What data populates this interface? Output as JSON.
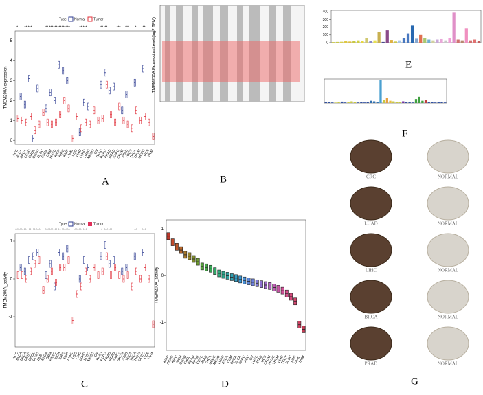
{
  "panels": [
    "A",
    "B",
    "C",
    "D",
    "E",
    "F",
    "G"
  ],
  "legend": {
    "title": "Type",
    "items": [
      "Normal",
      "Tumor"
    ]
  },
  "panel_b": {
    "y_label": "TMEM200A Expression Level (log2 TPM)"
  },
  "tissues": [
    [
      "CRC",
      "NORMAL"
    ],
    [
      "LUAD",
      "NORMAL"
    ],
    [
      "LIHC",
      "NORMAL"
    ],
    [
      "BRCA",
      "NORMAL"
    ],
    [
      "PRAD",
      "NORMAL"
    ]
  ],
  "chart_data": [
    {
      "type": "box",
      "y_label": "TMEM200A expression",
      "ylim": [
        -0.2,
        5.5
      ],
      "yticks": [
        0,
        1,
        2,
        3,
        4,
        5
      ],
      "categories": [
        "ACC",
        "BLCA",
        "BRCA",
        "CESC",
        "CHOL",
        "COAD",
        "DLBC",
        "ESCA",
        "GBM",
        "HNSC",
        "KICH",
        "KIRC",
        "KIRP",
        "LAML",
        "LGG",
        "LIHC",
        "LUAD",
        "LUSC",
        "MESO",
        "OV",
        "PAAD",
        "PCPG",
        "PRAD",
        "READ",
        "SARC",
        "SKCM",
        "STAD",
        "TGCT",
        "THCA",
        "THYM",
        "UCEC",
        "UCS",
        "UVM"
      ],
      "significance": [
        "*",
        null,
        "**",
        "***",
        null,
        null,
        null,
        "**",
        "***",
        "***",
        "***",
        "***",
        "***",
        null,
        null,
        "**",
        "***",
        null,
        null,
        null,
        "**",
        "**",
        null,
        null,
        "***",
        null,
        "***",
        null,
        "*",
        null,
        "**",
        null,
        null
      ],
      "series": [
        {
          "name": "Normal",
          "color": "#2b3a8f",
          "values": [
            null,
            2.2,
            1.8,
            3.1,
            0.1,
            2.6,
            null,
            1.6,
            2.4,
            2.0,
            3.8,
            3.5,
            3.0,
            null,
            null,
            0.4,
            1.9,
            1.7,
            null,
            null,
            2.8,
            3.4,
            2.5,
            2.7,
            null,
            1.5,
            2.3,
            null,
            2.9,
            null,
            3.6,
            null,
            null
          ]
        },
        {
          "name": "Tumor",
          "color": "#e0303a",
          "values": [
            1.1,
            1.0,
            0.9,
            1.2,
            0.5,
            0.8,
            1.4,
            0.9,
            0.8,
            0.9,
            1.3,
            2.0,
            1.6,
            0.1,
            1.2,
            0.6,
            0.9,
            0.8,
            1.5,
            1.0,
            1.1,
            2.8,
            1.3,
            0.9,
            1.7,
            1.0,
            0.8,
            0.6,
            1.5,
            1.0,
            1.2,
            0.9,
            0.2
          ]
        }
      ]
    },
    {
      "type": "box",
      "y_label": "TMEM200A_activity",
      "ylim": [
        -1.8,
        1.2
      ],
      "yticks": [
        -1,
        0,
        1
      ],
      "categories": [
        "ACC",
        "BLCA",
        "BRCA",
        "CESC",
        "CHOL",
        "COAD",
        "DLBC",
        "ESCA",
        "GBM",
        "HNSC",
        "KICH",
        "KIRC",
        "KIRP",
        "LAML",
        "LGG",
        "LIHC",
        "LUAD",
        "LUSC",
        "MESO",
        "OV",
        "PAAD",
        "PCPG",
        "PRAD",
        "READ",
        "SARC",
        "SKCM",
        "STAD",
        "TGCT",
        "THCA",
        "THYM",
        "UCEC",
        "UCS",
        "UVM"
      ],
      "significance": [
        "***",
        "***",
        "***",
        "**",
        "**",
        "***",
        null,
        "***",
        "***",
        "***",
        "**",
        "***",
        "***",
        null,
        "***",
        "***",
        "***",
        null,
        null,
        null,
        "*",
        "***",
        "***",
        null,
        null,
        null,
        null,
        null,
        "**",
        null,
        "***",
        null,
        null
      ],
      "series": [
        {
          "name": "Normal",
          "color": "#2b3a8f",
          "values": [
            null,
            0.3,
            0.2,
            0.5,
            0.6,
            0.7,
            null,
            0.1,
            0.4,
            -0.2,
            0.7,
            0.6,
            0.8,
            null,
            null,
            0.0,
            0.5,
            0.3,
            null,
            null,
            0.6,
            0.9,
            0.4,
            0.5,
            null,
            0.2,
            0.3,
            null,
            0.6,
            null,
            0.7,
            null,
            null
          ]
        },
        {
          "name": "Tumor",
          "color": "#e0303a",
          "values": [
            0.1,
            0.1,
            0.0,
            0.2,
            0.4,
            0.5,
            -0.3,
            0.0,
            0.2,
            -0.1,
            0.3,
            0.3,
            0.5,
            -1.1,
            -0.4,
            -0.2,
            0.2,
            0.0,
            0.3,
            0.1,
            0.2,
            0.6,
            0.1,
            0.3,
            0.1,
            0.0,
            0.1,
            -0.2,
            0.2,
            0.0,
            0.3,
            0.0,
            -1.2
          ]
        }
      ]
    },
    {
      "type": "box",
      "y_label": "TMEM200A_activity",
      "ylim": [
        -1.6,
        1.2
      ],
      "yticks": [
        -1,
        0,
        1
      ],
      "categories": [
        "KIRP",
        "PCPG",
        "KIRC",
        "KICH",
        "COAD",
        "CHOL",
        "READ",
        "PRAD",
        "CESC",
        "PAAD",
        "THCA",
        "UCEC",
        "MESO",
        "LUAD",
        "ESCA",
        "GBM",
        "BRCA",
        "BLCA",
        "SARC",
        "ACC",
        "OV",
        "LUSC",
        "STAD",
        "UCS",
        "SKCM",
        "HNSC",
        "THYM",
        "LIHC",
        "TGCT",
        "DLBC",
        "LGG",
        "LAML",
        "UVM"
      ],
      "colors": [
        "#c0392b",
        "#c44a2a",
        "#c0582a",
        "#b8672a",
        "#a8782a",
        "#96852c",
        "#82902e",
        "#6d9a32",
        "#56a23a",
        "#44a646",
        "#38a856",
        "#32a868",
        "#2fa67a",
        "#2ea48c",
        "#2ea19e",
        "#30a0b0",
        "#349cc2",
        "#3a96d0",
        "#4890d8",
        "#5a88dc",
        "#6c80dc",
        "#7e78d8",
        "#9070d2",
        "#a068ca",
        "#b062c0",
        "#be5cb4",
        "#c856a6",
        "#d05298",
        "#d44e8a",
        "#d44a7c",
        "#d2466e",
        "#ce4262",
        "#c83e56"
      ],
      "values": [
        0.85,
        0.72,
        0.62,
        0.55,
        0.45,
        0.42,
        0.36,
        0.3,
        0.2,
        0.18,
        0.15,
        0.1,
        0.05,
        0.02,
        0.0,
        -0.03,
        -0.05,
        -0.08,
        -0.1,
        -0.12,
        -0.14,
        -0.16,
        -0.18,
        -0.2,
        -0.22,
        -0.25,
        -0.28,
        -0.32,
        -0.38,
        -0.45,
        -0.55,
        -1.05,
        -1.15
      ]
    },
    {
      "type": "bar",
      "ylim": [
        0,
        420
      ],
      "yticks": [
        0,
        100,
        200,
        300,
        400
      ],
      "colors": [
        "#c8c84a",
        "#c8c84a",
        "#d8d050",
        "#e0c840",
        "#e0c040",
        "#c8c840",
        "#d0d040",
        "#e8d840",
        "#d0c870",
        "#8888c8",
        "#e8e050",
        "#c8b050",
        "#4a4a8a",
        "#8a4a8a",
        "#e0b040",
        "#c8c850",
        "#a8c8e8",
        "#4878c0",
        "#4878c0",
        "#2868b0",
        "#88a8d0",
        "#e07050",
        "#a8c870",
        "#70b0d0",
        "#d0d0a0",
        "#c8a8d8",
        "#e8a8d8",
        "#c8c8c8",
        "#f0a0d8",
        "#e090c8",
        "#d07070",
        "#b88870",
        "#f090c0",
        "#d07070",
        "#e07070",
        "#c06060"
      ],
      "values": [
        8,
        10,
        12,
        18,
        15,
        22,
        30,
        20,
        55,
        25,
        30,
        140,
        10,
        160,
        35,
        15,
        30,
        60,
        120,
        220,
        50,
        100,
        60,
        40,
        30,
        40,
        45,
        30,
        55,
        390,
        40,
        30,
        185,
        30,
        40,
        25
      ]
    },
    {
      "type": "bar",
      "ylim": [
        0,
        420
      ],
      "yticks": [],
      "colors": [
        "#3050a0",
        "#3050a0",
        "#3050a0",
        "#c8c840",
        "#c8c840",
        "#3050a0",
        "#3050a0",
        "#c8c840",
        "#c8c840",
        "#c8c840",
        "#3050a0",
        "#3050a0",
        "#3050a0",
        "#3050a0",
        "#3070b0",
        "#3070b0",
        "#3070b0",
        "#4aa0d0",
        "#c8c840",
        "#e8a040",
        "#e8c040",
        "#c8c840",
        "#c8c840",
        "#c8c840",
        "#7030a0",
        "#3050a0",
        "#3050a0",
        "#3050a0",
        "#40a040",
        "#40a040",
        "#40a040",
        "#c04040",
        "#3050a0",
        "#3050a0",
        "#3050a0",
        "#3050a0",
        "#3050a0",
        "#3050a0"
      ],
      "values": [
        15,
        20,
        10,
        8,
        12,
        25,
        10,
        15,
        30,
        20,
        10,
        15,
        10,
        20,
        40,
        30,
        20,
        400,
        60,
        90,
        40,
        30,
        20,
        15,
        30,
        15,
        20,
        10,
        70,
        110,
        40,
        60,
        20,
        15,
        10,
        15,
        12,
        10
      ]
    }
  ]
}
